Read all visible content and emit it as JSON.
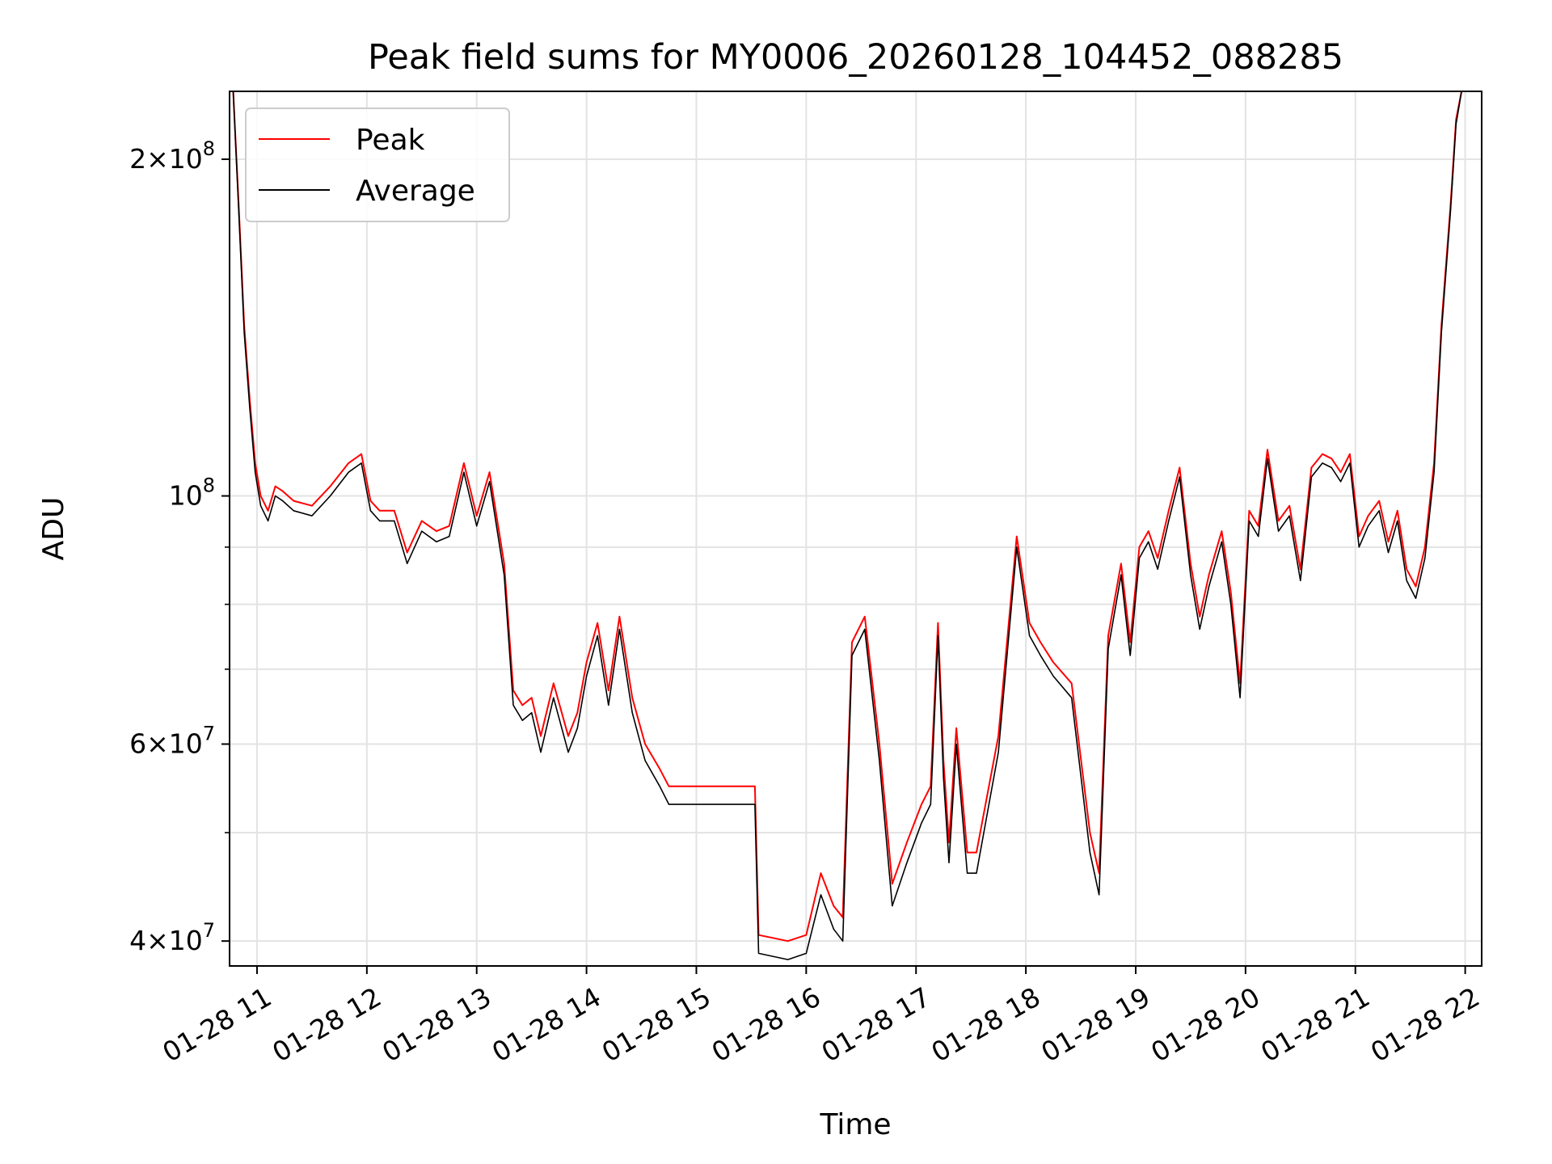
{
  "chart_data": {
    "type": "line",
    "title": "Peak field sums for MY0006_20260128_104452_088285",
    "xlabel": "Time",
    "ylabel": "ADU",
    "yscale": "log",
    "ylim": [
      38000000,
      230000000
    ],
    "xlim": [
      "2026-01-28 10:45",
      "2026-01-28 22:09"
    ],
    "grid": true,
    "legend_position": "top-left",
    "x_ticks": [
      {
        "value": "2026-01-28 11:00",
        "label": "01-28 11"
      },
      {
        "value": "2026-01-28 12:00",
        "label": "01-28 12"
      },
      {
        "value": "2026-01-28 13:00",
        "label": "01-28 13"
      },
      {
        "value": "2026-01-28 14:00",
        "label": "01-28 14"
      },
      {
        "value": "2026-01-28 15:00",
        "label": "01-28 15"
      },
      {
        "value": "2026-01-28 16:00",
        "label": "01-28 16"
      },
      {
        "value": "2026-01-28 17:00",
        "label": "01-28 17"
      },
      {
        "value": "2026-01-28 18:00",
        "label": "01-28 18"
      },
      {
        "value": "2026-01-28 19:00",
        "label": "01-28 19"
      },
      {
        "value": "2026-01-28 20:00",
        "label": "01-28 20"
      },
      {
        "value": "2026-01-28 21:00",
        "label": "01-28 21"
      },
      {
        "value": "2026-01-28 22:00",
        "label": "01-28 22"
      }
    ],
    "y_major_ticks": [
      {
        "value": 40000000,
        "mant": "4",
        "exp": "7"
      },
      {
        "value": 60000000,
        "mant": "6",
        "exp": "7"
      },
      {
        "value": 100000000,
        "mant": "",
        "exp": "8"
      },
      {
        "value": 200000000,
        "mant": "2",
        "exp": "8"
      }
    ],
    "y_minor_ticks": [
      50000000,
      70000000,
      80000000,
      90000000
    ],
    "x": [
      "2026-01-28 10:47",
      "2026-01-28 10:50",
      "2026-01-28 10:53",
      "2026-01-28 10:56",
      "2026-01-28 10:59",
      "2026-01-28 11:02",
      "2026-01-28 11:06",
      "2026-01-28 11:10",
      "2026-01-28 11:14",
      "2026-01-28 11:20",
      "2026-01-28 11:30",
      "2026-01-28 11:40",
      "2026-01-28 11:50",
      "2026-01-28 11:57",
      "2026-01-28 12:02",
      "2026-01-28 12:07",
      "2026-01-28 12:15",
      "2026-01-28 12:22",
      "2026-01-28 12:30",
      "2026-01-28 12:38",
      "2026-01-28 12:45",
      "2026-01-28 12:53",
      "2026-01-28 13:00",
      "2026-01-28 13:07",
      "2026-01-28 13:15",
      "2026-01-28 13:20",
      "2026-01-28 13:25",
      "2026-01-28 13:30",
      "2026-01-28 13:35",
      "2026-01-28 13:42",
      "2026-01-28 13:50",
      "2026-01-28 13:55",
      "2026-01-28 14:00",
      "2026-01-28 14:06",
      "2026-01-28 14:12",
      "2026-01-28 14:18",
      "2026-01-28 14:25",
      "2026-01-28 14:32",
      "2026-01-28 14:40",
      "2026-01-28 14:45",
      "2026-01-28 15:00",
      "2026-01-28 15:20",
      "2026-01-28 15:32",
      "2026-01-28 15:34",
      "2026-01-28 15:50",
      "2026-01-28 16:00",
      "2026-01-28 16:08",
      "2026-01-28 16:15",
      "2026-01-28 16:20",
      "2026-01-28 16:25",
      "2026-01-28 16:32",
      "2026-01-28 16:40",
      "2026-01-28 16:47",
      "2026-01-28 16:55",
      "2026-01-28 17:03",
      "2026-01-28 17:08",
      "2026-01-28 17:12",
      "2026-01-28 17:15",
      "2026-01-28 17:18",
      "2026-01-28 17:22",
      "2026-01-28 17:28",
      "2026-01-28 17:33",
      "2026-01-28 17:45",
      "2026-01-28 17:55",
      "2026-01-28 18:02",
      "2026-01-28 18:08",
      "2026-01-28 18:15",
      "2026-01-28 18:25",
      "2026-01-28 18:35",
      "2026-01-28 18:40",
      "2026-01-28 18:45",
      "2026-01-28 18:52",
      "2026-01-28 18:57",
      "2026-01-28 19:02",
      "2026-01-28 19:07",
      "2026-01-28 19:12",
      "2026-01-28 19:18",
      "2026-01-28 19:24",
      "2026-01-28 19:30",
      "2026-01-28 19:35",
      "2026-01-28 19:40",
      "2026-01-28 19:47",
      "2026-01-28 19:52",
      "2026-01-28 19:57",
      "2026-01-28 20:02",
      "2026-01-28 20:07",
      "2026-01-28 20:12",
      "2026-01-28 20:18",
      "2026-01-28 20:24",
      "2026-01-28 20:30",
      "2026-01-28 20:36",
      "2026-01-28 20:42",
      "2026-01-28 20:47",
      "2026-01-28 20:52",
      "2026-01-28 20:57",
      "2026-01-28 21:02",
      "2026-01-28 21:07",
      "2026-01-28 21:13",
      "2026-01-28 21:18",
      "2026-01-28 21:23",
      "2026-01-28 21:28",
      "2026-01-28 21:33",
      "2026-01-28 21:38",
      "2026-01-28 21:43",
      "2026-01-28 21:47",
      "2026-01-28 21:52",
      "2026-01-28 21:55",
      "2026-01-28 21:58",
      "2026-01-28 22:00"
    ],
    "series": [
      {
        "name": "Average",
        "color": "#000000",
        "values": [
          230000000,
          180000000,
          140000000,
          120000000,
          105000000,
          98000000,
          95000000,
          100000000,
          99000000,
          97000000,
          96000000,
          100000000,
          105000000,
          107000000,
          97000000,
          95000000,
          95000000,
          87000000,
          93000000,
          91000000,
          92000000,
          105000000,
          94000000,
          103000000,
          85000000,
          65000000,
          63000000,
          64000000,
          59000000,
          66000000,
          59000000,
          62000000,
          69000000,
          75000000,
          65000000,
          76000000,
          64000000,
          58000000,
          55000000,
          53000000,
          53000000,
          53000000,
          53000000,
          39000000,
          38500000,
          39000000,
          44000000,
          41000000,
          40000000,
          72000000,
          76000000,
          58000000,
          43000000,
          47000000,
          51000000,
          53000000,
          75000000,
          56000000,
          47000000,
          60000000,
          46000000,
          46000000,
          59000000,
          90000000,
          75000000,
          72000000,
          69000000,
          66000000,
          48000000,
          44000000,
          73000000,
          85000000,
          72000000,
          88000000,
          91000000,
          86000000,
          95000000,
          104000000,
          85000000,
          76000000,
          83000000,
          91000000,
          80000000,
          66000000,
          95000000,
          92000000,
          108000000,
          93000000,
          96000000,
          84000000,
          104000000,
          107000000,
          106000000,
          103000000,
          107000000,
          90000000,
          94000000,
          97000000,
          89000000,
          95000000,
          84000000,
          81000000,
          88000000,
          105000000,
          140000000,
          180000000,
          215000000,
          230000000,
          230000000
        ]
      },
      {
        "name": "Peak",
        "color": "#ff0000",
        "values": [
          230000000,
          182000000,
          142000000,
          122000000,
          107000000,
          100000000,
          97000000,
          102000000,
          101000000,
          99000000,
          98000000,
          102000000,
          107000000,
          109000000,
          99000000,
          97000000,
          97000000,
          89000000,
          95000000,
          93000000,
          94000000,
          107000000,
          96000000,
          105000000,
          87000000,
          67000000,
          65000000,
          66000000,
          61000000,
          68000000,
          61000000,
          64000000,
          71000000,
          77000000,
          67000000,
          78000000,
          66000000,
          60000000,
          57000000,
          55000000,
          55000000,
          55000000,
          55000000,
          40500000,
          40000000,
          40500000,
          46000000,
          43000000,
          42000000,
          74000000,
          78000000,
          60000000,
          45000000,
          49000000,
          53000000,
          55000000,
          77000000,
          58000000,
          49000000,
          62000000,
          48000000,
          48000000,
          61000000,
          92000000,
          77000000,
          74000000,
          71000000,
          68000000,
          50000000,
          46000000,
          75000000,
          87000000,
          74000000,
          90000000,
          93000000,
          88000000,
          97000000,
          106000000,
          87000000,
          78000000,
          85000000,
          93000000,
          82000000,
          68000000,
          97000000,
          94000000,
          110000000,
          95000000,
          98000000,
          86000000,
          106000000,
          109000000,
          108000000,
          105000000,
          109000000,
          92000000,
          96000000,
          99000000,
          91000000,
          97000000,
          86000000,
          83000000,
          90000000,
          107000000,
          142000000,
          182000000,
          217000000,
          230000000,
          230000000
        ]
      }
    ]
  }
}
